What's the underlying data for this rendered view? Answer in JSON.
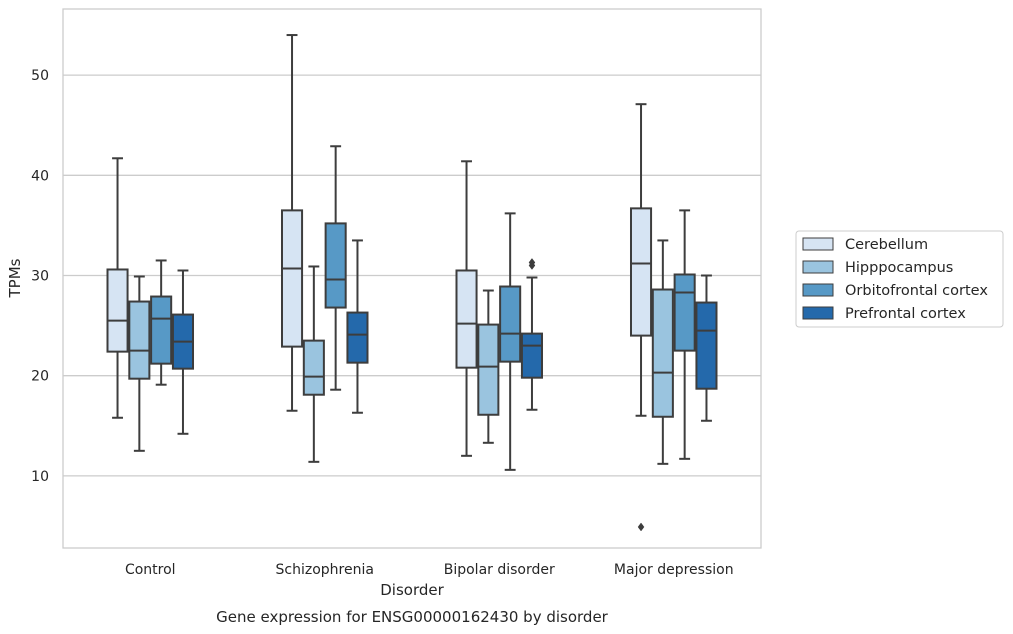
{
  "chart_data": {
    "type": "box",
    "title": "Gene expression for ENSG00000162430 by disorder",
    "xlabel": "Disorder",
    "ylabel": "TPMs",
    "ylim": [
      2.8,
      56.6
    ],
    "yticks": [
      10,
      20,
      30,
      40,
      50
    ],
    "grid": "horizontal",
    "legend_position": "right",
    "categories": [
      "Control",
      "Schizophrenia",
      "Bipolar disorder",
      "Major depression"
    ],
    "series": [
      {
        "name": "Cerebellum",
        "color": "#d6e4f3",
        "boxes": [
          {
            "whislo": 15.8,
            "q1": 22.4,
            "med": 25.5,
            "q3": 30.6,
            "whishi": 41.7,
            "fliers": []
          },
          {
            "whislo": 16.5,
            "q1": 22.9,
            "med": 30.7,
            "q3": 36.5,
            "whishi": 54.0,
            "fliers": []
          },
          {
            "whislo": 12.0,
            "q1": 20.8,
            "med": 25.2,
            "q3": 30.5,
            "whishi": 41.4,
            "fliers": []
          },
          {
            "whislo": 16.0,
            "q1": 24.0,
            "med": 31.2,
            "q3": 36.7,
            "whishi": 47.1,
            "fliers": [
              4.9
            ]
          }
        ]
      },
      {
        "name": "Hipppocampus",
        "color": "#9ac4df",
        "boxes": [
          {
            "whislo": 12.5,
            "q1": 19.7,
            "med": 22.5,
            "q3": 27.4,
            "whishi": 29.9,
            "fliers": []
          },
          {
            "whislo": 11.4,
            "q1": 18.1,
            "med": 19.9,
            "q3": 23.5,
            "whishi": 30.9,
            "fliers": []
          },
          {
            "whislo": 13.3,
            "q1": 16.1,
            "med": 20.9,
            "q3": 25.1,
            "whishi": 28.5,
            "fliers": []
          },
          {
            "whislo": 11.2,
            "q1": 15.9,
            "med": 20.3,
            "q3": 28.6,
            "whishi": 33.5,
            "fliers": []
          }
        ]
      },
      {
        "name": "Orbitofrontal cortex",
        "color": "#5799c6",
        "boxes": [
          {
            "whislo": 19.1,
            "q1": 21.2,
            "med": 25.7,
            "q3": 27.9,
            "whishi": 31.5,
            "fliers": []
          },
          {
            "whislo": 18.6,
            "q1": 26.8,
            "med": 29.6,
            "q3": 35.2,
            "whishi": 42.9,
            "fliers": []
          },
          {
            "whislo": 10.6,
            "q1": 21.4,
            "med": 24.2,
            "q3": 28.9,
            "whishi": 36.2,
            "fliers": []
          },
          {
            "whislo": 11.7,
            "q1": 22.5,
            "med": 28.3,
            "q3": 30.1,
            "whishi": 36.5,
            "fliers": []
          }
        ]
      },
      {
        "name": "Prefrontal cortex",
        "color": "#2469ab",
        "boxes": [
          {
            "whislo": 14.2,
            "q1": 20.7,
            "med": 23.4,
            "q3": 26.1,
            "whishi": 30.5,
            "fliers": []
          },
          {
            "whislo": 16.3,
            "q1": 21.3,
            "med": 24.1,
            "q3": 26.3,
            "whishi": 33.5,
            "fliers": []
          },
          {
            "whislo": 16.6,
            "q1": 19.8,
            "med": 23.0,
            "q3": 24.2,
            "whishi": 29.8,
            "fliers": [
              31.0,
              31.3
            ]
          },
          {
            "whislo": 15.5,
            "q1": 18.7,
            "med": 24.5,
            "q3": 27.3,
            "whishi": 30.0,
            "fliers": []
          }
        ]
      }
    ]
  }
}
